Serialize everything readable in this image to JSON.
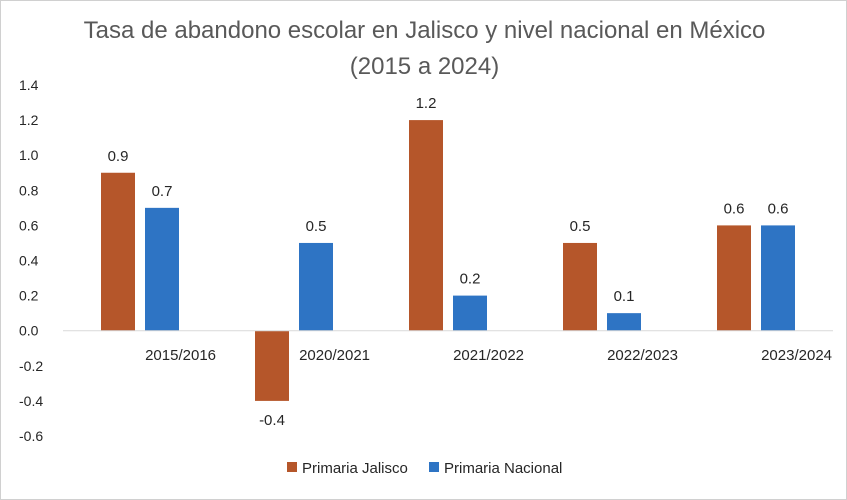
{
  "chart_data": {
    "type": "bar",
    "title": "Tasa de abandono escolar en Jalisco y nivel nacional en México (2015 a 2024)",
    "categories": [
      "2015/2016",
      "2020/2021",
      "2021/2022",
      "2022/2023",
      "2023/2024"
    ],
    "series": [
      {
        "name": "Primaria Jalisco",
        "color": "#b5562a",
        "values": [
          0.9,
          -0.4,
          1.2,
          0.5,
          0.6
        ]
      },
      {
        "name": "Primaria Nacional",
        "color": "#2e74c4",
        "values": [
          0.7,
          0.5,
          0.2,
          0.1,
          0.6
        ]
      }
    ],
    "ylim": [
      -0.6,
      1.4
    ],
    "yticks": [
      "1.4",
      "1.2",
      "1.0",
      "0.8",
      "0.6",
      "0.4",
      "0.2",
      "0.0",
      "-0.2",
      "-0.4",
      "-0.6"
    ],
    "data_labels": [
      [
        "0.9",
        "-0.4",
        "1.2",
        "0.5",
        "0.6"
      ],
      [
        "0.7",
        "0.5",
        "0.2",
        "0.1",
        "0.6"
      ]
    ],
    "xlabel": "",
    "ylabel": "",
    "grid": false,
    "legend_position": "bottom"
  }
}
